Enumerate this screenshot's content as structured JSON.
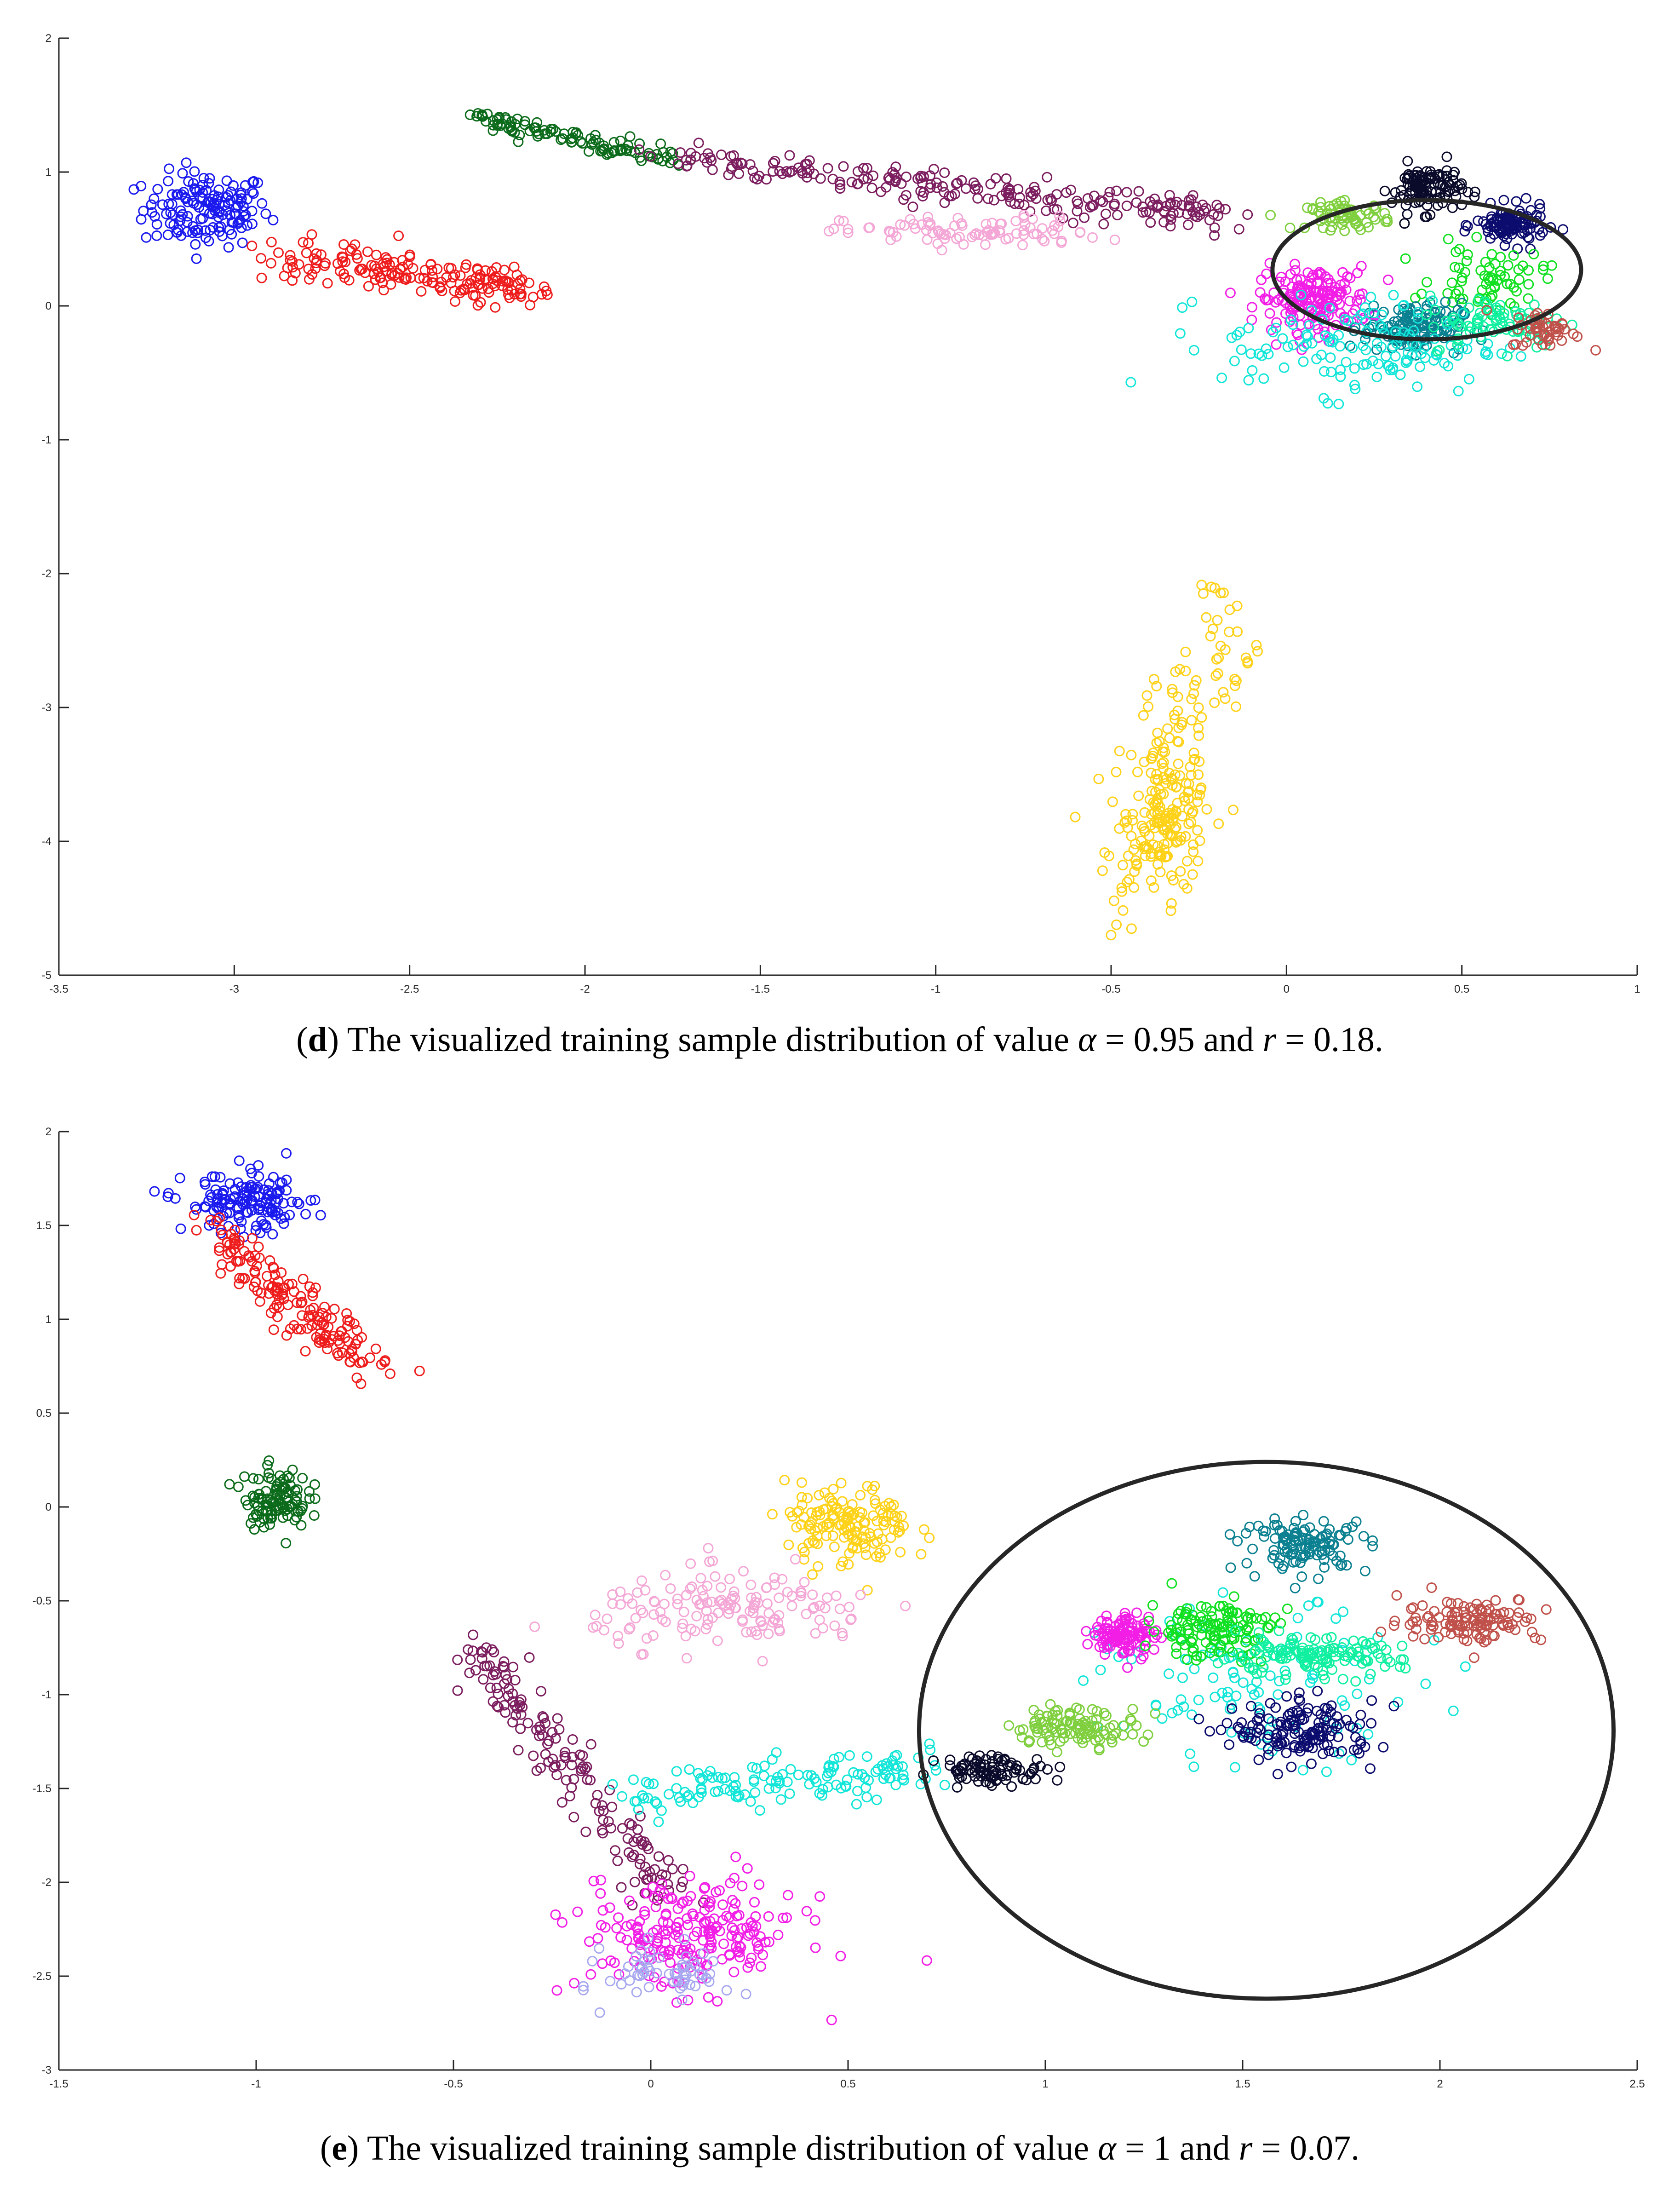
{
  "colors": {
    "blue": "#1a1aee",
    "red": "#ee1c1c",
    "dark_green": "#0b6b1a",
    "purple": "#7b1d5e",
    "pink": "#f4a7d6",
    "magenta": "#f21ee6",
    "light_green": "#7fcf3f",
    "navy": "#0c0c6e",
    "black_navy": "#0a0a2a",
    "teal": "#0a8090",
    "cyan": "#12e6d8",
    "green": "#10e020",
    "mint": "#10f0a0",
    "brown": "#c0504a",
    "yellow": "#ffd21a",
    "lavender": "#a8a8f0",
    "ellipse": "#000000"
  },
  "chart_data": [
    {
      "type": "scatter",
      "panel": "d",
      "caption": {
        "tag": "d",
        "text_before": ") The visualized training sample distribution of value ",
        "alpha_symbol": "α",
        "alpha_value": " = 0.95",
        "middle": " and ",
        "r_symbol": "r",
        "r_value": " = 0.18."
      },
      "xlim": [
        -3.5,
        1
      ],
      "ylim": [
        -5,
        2
      ],
      "xticks": [
        "-3.5",
        "-3",
        "-2.5",
        "-2",
        "-1.5",
        "-1",
        "-0.5",
        "0",
        "0.5",
        "1"
      ],
      "yticks": [
        "-5",
        "-4",
        "-3",
        "-2",
        "-1",
        "0",
        "1",
        "2"
      ],
      "xtick_values": [
        -3.5,
        -3,
        -2.5,
        -2,
        -1.5,
        -1,
        -0.5,
        0,
        0.5,
        1
      ],
      "ytick_values": [
        -5,
        -4,
        -3,
        -2,
        -1,
        0,
        1,
        2
      ],
      "ellipse": {
        "center": [
          0.4,
          0.27
        ],
        "rx": 0.44,
        "ry": 0.52
      },
      "series": [
        {
          "color": "blue",
          "center": [
            -3.08,
            0.72
          ],
          "spread": [
            0.09,
            0.14
          ],
          "n": 150
        },
        {
          "color": "red",
          "from": [
            -2.85,
            0.38
          ],
          "to": [
            -2.15,
            0.12
          ],
          "jitter": [
            0.06,
            0.07
          ],
          "n": 180
        },
        {
          "color": "dark_green",
          "from": [
            -2.32,
            1.42
          ],
          "to": [
            -1.75,
            1.08
          ],
          "jitter": [
            0.03,
            0.03
          ],
          "n": 110
        },
        {
          "color": "purple",
          "from": [
            -1.75,
            1.1
          ],
          "to": [
            -0.2,
            0.68
          ],
          "jitter": [
            0.06,
            0.06
          ],
          "n": 230
        },
        {
          "color": "pink",
          "center": [
            -0.9,
            0.55
          ],
          "spread": [
            0.18,
            0.06
          ],
          "n": 90
        },
        {
          "color": "magenta",
          "center": [
            0.08,
            0.05
          ],
          "spread": [
            0.08,
            0.12
          ],
          "n": 170
        },
        {
          "color": "light_green",
          "center": [
            0.18,
            0.67
          ],
          "spread": [
            0.06,
            0.05
          ],
          "n": 70
        },
        {
          "color": "black_navy",
          "center": [
            0.4,
            0.88
          ],
          "spread": [
            0.05,
            0.09
          ],
          "n": 110
        },
        {
          "color": "navy",
          "center": [
            0.64,
            0.6
          ],
          "spread": [
            0.05,
            0.07
          ],
          "n": 110
        },
        {
          "color": "green",
          "center": [
            0.58,
            0.2
          ],
          "spread": [
            0.08,
            0.12
          ],
          "n": 70
        },
        {
          "color": "teal",
          "center": [
            0.36,
            -0.16
          ],
          "spread": [
            0.07,
            0.09
          ],
          "n": 140
        },
        {
          "color": "cyan",
          "center": [
            0.22,
            -0.3
          ],
          "spread": [
            0.2,
            0.18
          ],
          "n": 140
        },
        {
          "color": "mint",
          "center": [
            0.6,
            -0.12
          ],
          "spread": [
            0.1,
            0.1
          ],
          "n": 80
        },
        {
          "color": "brown",
          "center": [
            0.74,
            -0.18
          ],
          "spread": [
            0.05,
            0.07
          ],
          "n": 50
        },
        {
          "color": "yellow",
          "from": [
            -0.5,
            -4.4
          ],
          "to": [
            -0.15,
            -2.2
          ],
          "jitter": [
            0.05,
            0.3
          ],
          "n": 130
        },
        {
          "color": "yellow",
          "center": [
            -0.33,
            -3.85
          ],
          "spread": [
            0.05,
            0.25
          ],
          "n": 130
        }
      ]
    },
    {
      "type": "scatter",
      "panel": "e",
      "caption": {
        "tag": "e",
        "text_before": ") The visualized training sample distribution of value ",
        "alpha_symbol": "α",
        "alpha_value": " = 1",
        "middle": " and ",
        "r_symbol": "r",
        "r_value": " = 0.07."
      },
      "xlim": [
        -1.5,
        2.5
      ],
      "ylim": [
        -3,
        2
      ],
      "xticks": [
        "-1.5",
        "-1",
        "-0.5",
        "0",
        "0.5",
        "1",
        "1.5",
        "2",
        "2.5"
      ],
      "yticks": [
        "-3",
        "-2.5",
        "-2",
        "-1.5",
        "-1",
        "-0.5",
        "0",
        "0.5",
        "1",
        "1.5",
        "2"
      ],
      "xtick_values": [
        -1.5,
        -1,
        -0.5,
        0,
        0.5,
        1,
        1.5,
        2,
        2.5
      ],
      "ytick_values": [
        -3,
        -2.5,
        -2,
        -1.5,
        -1,
        -0.5,
        0,
        0.5,
        1,
        1.5,
        2
      ],
      "ellipse": {
        "center": [
          1.56,
          -1.19
        ],
        "rx": 0.88,
        "ry": 1.43
      },
      "series": [
        {
          "color": "blue",
          "center": [
            -1.02,
            1.62
          ],
          "spread": [
            0.08,
            0.08
          ],
          "n": 140
        },
        {
          "color": "red",
          "from": [
            -1.12,
            1.48
          ],
          "to": [
            -0.7,
            0.72
          ],
          "jitter": [
            0.04,
            0.05
          ],
          "n": 170
        },
        {
          "color": "dark_green",
          "center": [
            -0.95,
            0.05
          ],
          "spread": [
            0.04,
            0.08
          ],
          "n": 110
        },
        {
          "color": "yellow",
          "center": [
            0.5,
            -0.1
          ],
          "spread": [
            0.08,
            0.11
          ],
          "n": 150
        },
        {
          "color": "pink",
          "center": [
            0.22,
            -0.55
          ],
          "spread": [
            0.18,
            0.1
          ],
          "n": 150
        },
        {
          "color": "purple",
          "from": [
            -0.45,
            -0.75
          ],
          "to": [
            0.05,
            -2.05
          ],
          "jitter": [
            0.04,
            0.06
          ],
          "n": 160
        },
        {
          "color": "magenta",
          "center": [
            0.1,
            -2.28
          ],
          "spread": [
            0.14,
            0.15
          ],
          "n": 220
        },
        {
          "color": "lavender",
          "center": [
            0.05,
            -2.48
          ],
          "spread": [
            0.08,
            0.08
          ],
          "n": 60
        },
        {
          "color": "cyan",
          "from": [
            -0.1,
            -1.55
          ],
          "to": [
            0.7,
            -1.4
          ],
          "jitter": [
            0.05,
            0.06
          ],
          "n": 140
        },
        {
          "color": "cyan",
          "center": [
            1.55,
            -0.95
          ],
          "spread": [
            0.2,
            0.2
          ],
          "n": 110
        },
        {
          "color": "black_navy",
          "center": [
            0.87,
            -1.4
          ],
          "spread": [
            0.07,
            0.04
          ],
          "n": 90
        },
        {
          "color": "light_green",
          "center": [
            1.08,
            -1.17
          ],
          "spread": [
            0.08,
            0.05
          ],
          "n": 110
        },
        {
          "color": "magenta",
          "center": [
            1.2,
            -0.68
          ],
          "spread": [
            0.04,
            0.06
          ],
          "n": 110
        },
        {
          "color": "green",
          "center": [
            1.42,
            -0.65
          ],
          "spread": [
            0.08,
            0.08
          ],
          "n": 130
        },
        {
          "color": "mint",
          "center": [
            1.66,
            -0.8
          ],
          "spread": [
            0.12,
            0.05
          ],
          "n": 130
        },
        {
          "color": "teal",
          "center": [
            1.66,
            -0.2
          ],
          "spread": [
            0.08,
            0.07
          ],
          "n": 120
        },
        {
          "color": "brown",
          "center": [
            2.08,
            -0.6
          ],
          "spread": [
            0.09,
            0.06
          ],
          "n": 120
        },
        {
          "color": "navy",
          "center": [
            1.66,
            -1.2
          ],
          "spread": [
            0.09,
            0.08
          ],
          "n": 150
        }
      ]
    }
  ]
}
